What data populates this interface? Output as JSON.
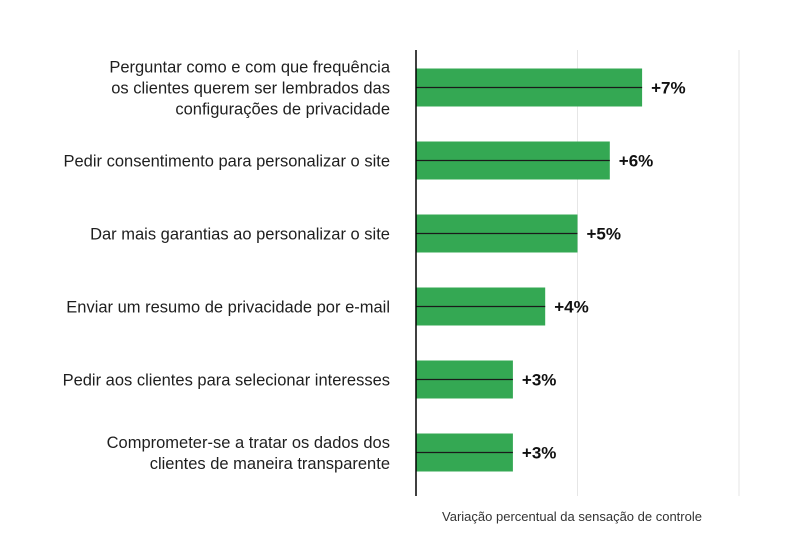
{
  "chart_data": {
    "type": "bar",
    "orientation": "horizontal",
    "title": "",
    "xlabel": "Variação percentual da sensação de controle",
    "ylabel": "",
    "xlim": [
      0,
      10
    ],
    "grid": true,
    "legend": "none",
    "bar_color": "#34a853",
    "categories": [
      [
        "Perguntar como e com que frequência",
        "os clientes querem ser lembrados das",
        "configurações de privacidade"
      ],
      [
        "Pedir consentimento para personalizar o site"
      ],
      [
        "Dar mais garantias ao personalizar o site"
      ],
      [
        "Enviar um resumo de privacidade por e-mail"
      ],
      [
        "Pedir aos clientes para selecionar interesses"
      ],
      [
        "Comprometer-se a tratar os dados dos",
        "clientes de maneira transparente"
      ]
    ],
    "values": [
      7,
      6,
      5,
      4,
      3,
      3
    ],
    "value_labels": [
      "+7%",
      "+6%",
      "+5%",
      "+4%",
      "+3%",
      "+3%"
    ]
  }
}
